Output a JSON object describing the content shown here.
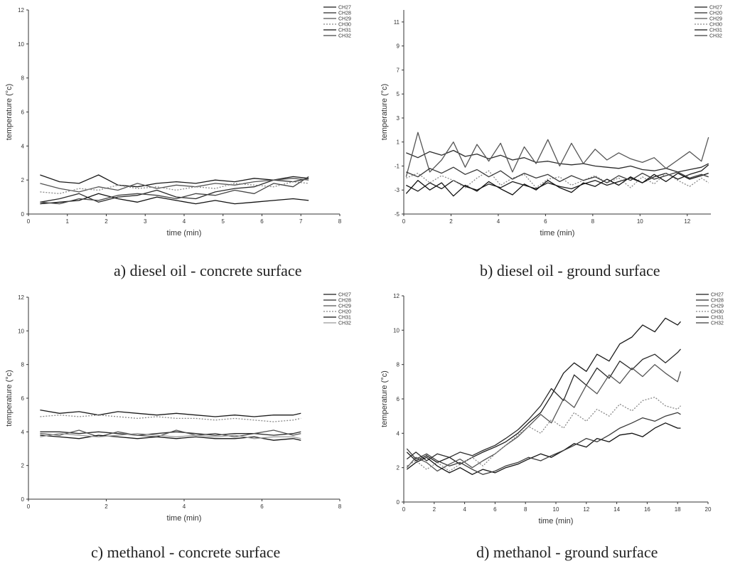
{
  "chart_data": [
    {
      "type": "line",
      "title": "",
      "caption": "a) diesel oil - concrete surface",
      "xlabel": "time (min)",
      "ylabel": "temperature (°c)",
      "xlim": [
        0,
        8
      ],
      "ylim": [
        0,
        12
      ],
      "xticks": [
        0,
        1,
        2,
        3,
        4,
        5,
        6,
        7,
        8
      ],
      "yticks": [
        0,
        2,
        4,
        6,
        8,
        10,
        12
      ],
      "legend_position": "top-right",
      "x": [
        0.3,
        0.8,
        1.3,
        1.8,
        2.3,
        2.8,
        3.3,
        3.8,
        4.3,
        4.8,
        5.3,
        5.8,
        6.3,
        6.8,
        7.2
      ],
      "series": [
        {
          "name": "CH27",
          "color": "#1a1a1a",
          "dash": "",
          "values": [
            2.3,
            1.9,
            1.8,
            2.3,
            1.7,
            1.6,
            1.8,
            1.9,
            1.8,
            2.0,
            1.9,
            2.1,
            2.0,
            2.2,
            2.1
          ]
        },
        {
          "name": "CH28",
          "color": "#2a2a2a",
          "dash": "",
          "values": [
            0.7,
            0.9,
            1.2,
            0.7,
            1.0,
            1.1,
            1.4,
            1.0,
            0.9,
            1.3,
            1.5,
            1.6,
            2.0,
            1.9,
            2.1
          ]
        },
        {
          "name": "CH29",
          "color": "#555555",
          "dash": "",
          "values": [
            1.8,
            1.5,
            1.3,
            1.6,
            1.4,
            1.8,
            1.5,
            1.7,
            1.6,
            1.8,
            1.7,
            1.9,
            2.0,
            2.1,
            2.0
          ]
        },
        {
          "name": "CH30",
          "color": "#888888",
          "dash": "2,2",
          "values": [
            1.3,
            1.2,
            1.5,
            1.4,
            1.7,
            1.5,
            1.6,
            1.4,
            1.6,
            1.5,
            1.8,
            1.7,
            1.6,
            1.9,
            1.8
          ]
        },
        {
          "name": "CH31",
          "color": "#111111",
          "dash": "",
          "values": [
            0.6,
            0.7,
            0.8,
            1.2,
            0.9,
            0.7,
            1.0,
            0.8,
            0.6,
            0.8,
            0.6,
            0.7,
            0.8,
            0.9,
            0.8
          ]
        },
        {
          "name": "CH32",
          "color": "#444444",
          "dash": "",
          "values": [
            0.7,
            0.6,
            0.9,
            0.8,
            1.1,
            1.2,
            1.1,
            0.9,
            1.2,
            1.1,
            1.4,
            1.2,
            1.8,
            1.6,
            2.2
          ]
        }
      ]
    },
    {
      "type": "line",
      "title": "",
      "caption": "b) diesel oil - ground surface",
      "xlabel": "time (min)",
      "ylabel": "temperature (°c)",
      "xlim": [
        0,
        13
      ],
      "ylim": [
        -5,
        12
      ],
      "xticks": [
        0,
        2,
        4,
        6,
        8,
        10,
        12
      ],
      "yticks": [
        -5,
        -3,
        -1,
        1,
        3,
        5,
        7,
        9,
        11
      ],
      "legend_position": "top-right",
      "x": [
        0.1,
        0.6,
        1.1,
        1.6,
        2.1,
        2.6,
        3.1,
        3.6,
        4.1,
        4.6,
        5.1,
        5.6,
        6.1,
        6.6,
        7.1,
        7.6,
        8.1,
        8.6,
        9.1,
        9.6,
        10.1,
        10.6,
        11.1,
        11.6,
        12.1,
        12.6,
        12.9
      ],
      "series": [
        {
          "name": "CH27",
          "color": "#1a1a1a",
          "dash": "",
          "values": [
            -2.6,
            -3.1,
            -2.4,
            -2.9,
            -2.2,
            -2.7,
            -3.0,
            -2.5,
            -2.8,
            -2.3,
            -2.6,
            -2.9,
            -2.4,
            -2.7,
            -2.9,
            -2.5,
            -2.2,
            -2.6,
            -2.3,
            -2.0,
            -2.4,
            -1.9,
            -1.6,
            -2.1,
            -1.7,
            -1.4,
            -0.9
          ]
        },
        {
          "name": "CH20",
          "color": "#2a2a2a",
          "dash": "",
          "values": [
            0.1,
            -0.3,
            0.2,
            -0.1,
            0.3,
            -0.2,
            0.0,
            -0.4,
            -0.1,
            -0.5,
            -0.3,
            -0.7,
            -0.6,
            -0.8,
            -0.9,
            -0.8,
            -1.0,
            -1.1,
            -1.2,
            -1.0,
            -1.3,
            -1.4,
            -1.2,
            -1.5,
            -1.3,
            -1.1,
            -0.8
          ]
        },
        {
          "name": "CH29",
          "color": "#555555",
          "dash": "",
          "values": [
            -1.9,
            1.8,
            -1.5,
            -0.5,
            1.0,
            -1.1,
            0.8,
            -0.6,
            0.9,
            -1.5,
            0.6,
            -0.8,
            1.2,
            -1.0,
            0.9,
            -0.8,
            0.4,
            -0.5,
            0.1,
            -0.4,
            -0.7,
            -0.3,
            -1.2,
            -0.5,
            0.2,
            -0.6,
            1.4
          ]
        },
        {
          "name": "CH30",
          "color": "#888888",
          "dash": "2,2",
          "values": [
            -2.0,
            -1.6,
            -2.4,
            -1.8,
            -2.2,
            -2.8,
            -2.0,
            -1.4,
            -2.6,
            -2.0,
            -1.7,
            -2.8,
            -2.1,
            -1.9,
            -2.6,
            -2.2,
            -1.8,
            -2.4,
            -2.0,
            -2.8,
            -1.9,
            -2.5,
            -1.6,
            -2.2,
            -2.7,
            -2.0,
            -2.4
          ]
        },
        {
          "name": "CH31",
          "color": "#111111",
          "dash": "",
          "values": [
            -3.3,
            -2.2,
            -3.0,
            -2.4,
            -3.5,
            -2.6,
            -3.1,
            -2.3,
            -2.9,
            -3.4,
            -2.5,
            -3.0,
            -2.2,
            -2.8,
            -3.2,
            -2.4,
            -2.7,
            -2.1,
            -2.6,
            -1.9,
            -2.4,
            -1.7,
            -2.3,
            -1.6,
            -2.1,
            -1.8,
            -1.6
          ]
        },
        {
          "name": "CH32",
          "color": "#3a3a3a",
          "dash": "",
          "values": [
            -1.5,
            -1.9,
            -1.2,
            -1.6,
            -1.1,
            -1.7,
            -1.3,
            -1.9,
            -1.4,
            -2.1,
            -1.6,
            -2.0,
            -1.7,
            -2.3,
            -1.8,
            -2.2,
            -1.9,
            -2.4,
            -1.8,
            -2.2,
            -1.6,
            -2.1,
            -1.8,
            -1.5,
            -2.0,
            -1.7,
            -1.9
          ]
        }
      ]
    },
    {
      "type": "line",
      "title": "",
      "caption": "c) methanol - concrete surface",
      "xlabel": "time (min)",
      "ylabel": "temperature (°c)",
      "xlim": [
        0,
        8
      ],
      "ylim": [
        0,
        12
      ],
      "xticks": [
        0,
        2,
        4,
        6,
        8
      ],
      "yticks": [
        0,
        2,
        4,
        6,
        8,
        10,
        12
      ],
      "legend_position": "top-right",
      "x": [
        0.3,
        0.8,
        1.3,
        1.8,
        2.3,
        2.8,
        3.3,
        3.8,
        4.3,
        4.8,
        5.3,
        5.8,
        6.3,
        6.8,
        7.0
      ],
      "series": [
        {
          "name": "CH27",
          "color": "#1a1a1a",
          "dash": "",
          "values": [
            5.3,
            5.1,
            5.2,
            5.0,
            5.2,
            5.1,
            5.0,
            5.1,
            5.0,
            4.9,
            5.0,
            4.9,
            5.0,
            5.0,
            5.1
          ]
        },
        {
          "name": "CH28",
          "color": "#2a2a2a",
          "dash": "",
          "values": [
            4.0,
            4.0,
            3.9,
            4.0,
            3.9,
            3.8,
            3.9,
            4.0,
            3.9,
            3.8,
            3.9,
            3.9,
            3.8,
            3.9,
            4.0
          ]
        },
        {
          "name": "CH29",
          "color": "#555555",
          "dash": "",
          "values": [
            3.9,
            3.8,
            4.1,
            3.7,
            4.0,
            3.8,
            3.7,
            4.1,
            3.8,
            3.9,
            3.7,
            3.9,
            4.1,
            3.8,
            3.9
          ]
        },
        {
          "name": "CH20",
          "color": "#888888",
          "dash": "2,2",
          "values": [
            4.9,
            5.0,
            4.9,
            5.0,
            4.9,
            4.8,
            4.9,
            4.8,
            4.8,
            4.7,
            4.8,
            4.7,
            4.6,
            4.7,
            4.8
          ]
        },
        {
          "name": "CH31",
          "color": "#111111",
          "dash": "",
          "values": [
            3.8,
            3.7,
            3.6,
            3.8,
            3.7,
            3.6,
            3.7,
            3.6,
            3.7,
            3.6,
            3.6,
            3.7,
            3.5,
            3.6,
            3.5
          ]
        },
        {
          "name": "CH32",
          "color": "#999999",
          "dash": "",
          "values": [
            3.7,
            3.9,
            3.8,
            3.7,
            3.8,
            3.9,
            3.8,
            3.7,
            3.8,
            3.7,
            3.8,
            3.6,
            3.7,
            3.7,
            3.6
          ]
        }
      ]
    },
    {
      "type": "line",
      "title": "",
      "caption": "d) methanol - ground surface",
      "xlabel": "time (min)",
      "ylabel": "temperature (°c)",
      "xlim": [
        0,
        20
      ],
      "ylim": [
        0,
        12
      ],
      "xticks": [
        0,
        2,
        4,
        6,
        8,
        10,
        12,
        14,
        16,
        18,
        20
      ],
      "yticks": [
        0,
        2,
        4,
        6,
        8,
        10,
        12
      ],
      "legend_position": "top-right",
      "x": [
        0.2,
        0.8,
        1.5,
        2.2,
        3.0,
        3.7,
        4.5,
        5.2,
        6.0,
        6.7,
        7.5,
        8.2,
        9.0,
        9.7,
        10.5,
        11.2,
        12.0,
        12.7,
        13.5,
        14.2,
        15.0,
        15.7,
        16.5,
        17.2,
        18.0,
        18.2
      ],
      "series": [
        {
          "name": "CH27",
          "color": "#1a1a1a",
          "dash": "",
          "values": [
            2.9,
            2.4,
            2.7,
            2.3,
            2.6,
            2.2,
            2.6,
            2.9,
            3.2,
            3.5,
            4.0,
            4.6,
            5.2,
            6.2,
            7.5,
            8.1,
            7.6,
            8.6,
            8.2,
            9.2,
            9.6,
            10.3,
            9.9,
            10.7,
            10.3,
            10.5
          ]
        },
        {
          "name": "CH28",
          "color": "#2a2a2a",
          "dash": "",
          "values": [
            2.5,
            2.9,
            2.4,
            2.8,
            2.6,
            2.9,
            2.7,
            3.0,
            3.3,
            3.7,
            4.2,
            4.8,
            5.6,
            6.6,
            5.9,
            7.4,
            6.8,
            7.8,
            7.2,
            8.2,
            7.7,
            8.3,
            8.6,
            8.1,
            8.7,
            8.9
          ]
        },
        {
          "name": "CH29",
          "color": "#555555",
          "dash": "",
          "values": [
            2.0,
            2.6,
            2.3,
            1.8,
            2.2,
            2.5,
            2.0,
            2.4,
            2.8,
            3.3,
            3.8,
            4.4,
            5.1,
            4.6,
            6.0,
            5.5,
            6.8,
            6.3,
            7.4,
            6.9,
            7.8,
            7.3,
            8.0,
            7.5,
            7.0,
            7.6
          ]
        },
        {
          "name": "CH30",
          "color": "#888888",
          "dash": "2,2",
          "values": [
            2.1,
            2.4,
            1.9,
            2.3,
            1.8,
            2.2,
            2.6,
            2.1,
            2.8,
            3.3,
            3.9,
            4.4,
            4.0,
            4.8,
            4.3,
            5.2,
            4.7,
            5.4,
            5.0,
            5.7,
            5.3,
            5.9,
            6.1,
            5.6,
            5.4,
            5.6
          ]
        },
        {
          "name": "CH31",
          "color": "#111111",
          "dash": "",
          "values": [
            1.9,
            2.3,
            2.6,
            2.1,
            1.7,
            2.0,
            1.6,
            1.9,
            1.7,
            2.0,
            2.2,
            2.5,
            2.8,
            2.6,
            3.0,
            3.4,
            3.2,
            3.7,
            3.5,
            3.9,
            4.0,
            3.8,
            4.3,
            4.6,
            4.3,
            4.3
          ]
        },
        {
          "name": "CH32",
          "color": "#3a3a3a",
          "dash": "",
          "values": [
            3.1,
            2.5,
            2.8,
            2.4,
            2.1,
            2.3,
            1.9,
            1.6,
            1.8,
            2.1,
            2.3,
            2.6,
            2.4,
            2.7,
            3.0,
            3.3,
            3.7,
            3.5,
            3.9,
            4.3,
            4.6,
            4.9,
            4.7,
            5.0,
            5.2,
            5.1
          ]
        }
      ]
    }
  ]
}
